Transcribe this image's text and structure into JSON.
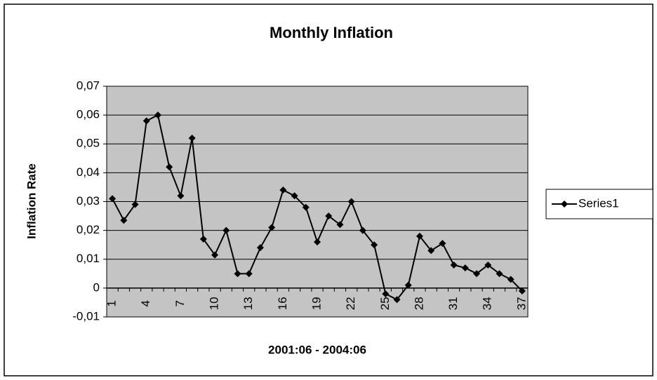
{
  "chart_data": {
    "type": "line",
    "title": "Monthly Inflation",
    "x_label": "2001:06 - 2004:06",
    "y_label": "Inflation Rate",
    "categories": [
      "1",
      null,
      null,
      "4",
      null,
      null,
      "7",
      null,
      null,
      "10",
      null,
      null,
      "13",
      null,
      null,
      "16",
      null,
      null,
      "19",
      null,
      null,
      "22",
      null,
      null,
      "25",
      null,
      null,
      "28",
      null,
      null,
      "31",
      null,
      null,
      "34",
      null,
      null,
      "37"
    ],
    "series": [
      {
        "name": "Series1",
        "color": "#000000",
        "values": [
          0.031,
          0.0235,
          0.029,
          0.058,
          0.06,
          0.042,
          0.032,
          0.052,
          0.017,
          0.0115,
          0.02,
          0.005,
          0.005,
          0.014,
          0.021,
          0.034,
          0.032,
          0.028,
          0.016,
          0.025,
          0.022,
          0.03,
          0.02,
          0.015,
          -0.002,
          -0.004,
          0.001,
          0.018,
          0.013,
          0.0155,
          0.008,
          0.007,
          0.005,
          0.008,
          0.005,
          0.003,
          -0.001
        ]
      }
    ],
    "ylim": [
      -0.01,
      0.07
    ],
    "yticks": [
      {
        "value": -0.01,
        "label": "-0,01"
      },
      0,
      {
        "value": 0.01,
        "label": "0,01"
      },
      {
        "value": 0.02,
        "label": "0,02"
      },
      {
        "value": 0.03,
        "label": "0,03"
      },
      {
        "value": 0.04,
        "label": "0,04"
      },
      {
        "value": 0.05,
        "label": "0,05"
      },
      {
        "value": 0.06,
        "label": "0,06"
      },
      {
        "value": 0.07,
        "label": "0,07"
      }
    ],
    "grid": true,
    "legend": "right",
    "plot_background": "#c4c4c4"
  }
}
